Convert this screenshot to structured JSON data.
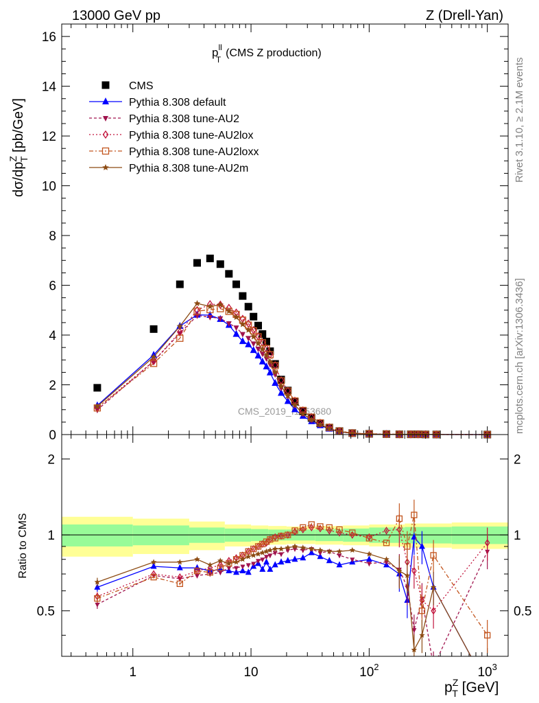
{
  "header": {
    "energy_label": "13000 GeV pp",
    "process_label": "Z (Drell-Yan)"
  },
  "side_text": {
    "rivet": "Rivet 3.1.10, ≥ 2.1M events",
    "mcplots": "mcplots.cern.ch [arXiv:1306.3436]"
  },
  "chart_data": [
    {
      "type": "scatter",
      "panel": "main",
      "title": "p_T^ll (CMS Z production)",
      "watermark": "CMS_2019_I1753680",
      "ylabel": "dσ/dp_T^Z [pb/GeV]",
      "xscale": "log",
      "xlim": [
        0.25,
        1500
      ],
      "ylim": [
        0,
        16.5
      ],
      "yticks": [
        0,
        2,
        4,
        6,
        8,
        10,
        12,
        14,
        16
      ],
      "legend_position": "top-left",
      "x": [
        0.5,
        1.5,
        2.5,
        3.5,
        4.5,
        5.5,
        6.5,
        7.5,
        8.5,
        9.5,
        10.5,
        11.5,
        12.5,
        13.5,
        14.5,
        16,
        18,
        20.5,
        23.5,
        27.5,
        32.5,
        38.5,
        46,
        56,
        72,
        100,
        140,
        180,
        225,
        260,
        300,
        370,
        1000
      ],
      "series": [
        {
          "name": "CMS",
          "color": "#000000",
          "marker": "square",
          "values": [
            1.88,
            4.24,
            6.04,
            6.9,
            7.08,
            6.85,
            6.46,
            6.04,
            5.57,
            5.14,
            4.74,
            4.38,
            4.04,
            3.74,
            3.35,
            2.84,
            2.21,
            1.77,
            1.32,
            0.94,
            0.67,
            0.45,
            0.28,
            0.14,
            0.06,
            0.03,
            0.02,
            0.01,
            0.01,
            0.01,
            0.005,
            0.004,
            0.001
          ]
        },
        {
          "name": "Pythia 8.308 default",
          "color": "#0000ff",
          "marker": "triangle-up",
          "dash": "",
          "values": [
            1.17,
            3.2,
            4.36,
            4.81,
            4.8,
            4.64,
            4.4,
            4.04,
            3.75,
            3.62,
            3.39,
            3.17,
            2.93,
            2.73,
            2.49,
            2.07,
            1.67,
            1.34,
            1.01,
            0.75,
            0.53,
            0.37,
            0.23,
            0.11,
            0.05,
            0.02,
            0.01,
            0.01,
            0.01,
            0.01,
            0.005,
            0.004,
            0.001
          ]
        },
        {
          "name": "Pythia 8.308 tune-AU2",
          "color": "#a0134d",
          "marker": "triangle-down",
          "dash": "4,3",
          "values": [
            0.99,
            2.95,
            4.07,
            4.78,
            4.72,
            4.67,
            4.47,
            4.3,
            4.04,
            3.88,
            3.66,
            3.45,
            3.25,
            3.06,
            2.82,
            2.42,
            1.87,
            1.54,
            1.18,
            0.83,
            0.59,
            0.39,
            0.25,
            0.12,
            0.05,
            0.02,
            0.01,
            0.01,
            0.01,
            0.01,
            0.005,
            0.004,
            0.001
          ]
        },
        {
          "name": "Pythia 8.308 tune-AU2lox",
          "color": "#c2143c",
          "marker": "diamond-open",
          "dash": "2,3",
          "values": [
            1.07,
            2.95,
            4.12,
            5.0,
            5.24,
            5.22,
            5.09,
            4.9,
            4.65,
            4.46,
            4.2,
            3.95,
            3.7,
            3.46,
            3.22,
            2.79,
            2.18,
            1.76,
            1.36,
            0.97,
            0.7,
            0.47,
            0.29,
            0.14,
            0.06,
            0.03,
            0.02,
            0.01,
            0.01,
            0.01,
            0.005,
            0.004,
            0.001
          ]
        },
        {
          "name": "Pythia 8.308 tune-AU2loxx",
          "color": "#c2541d",
          "marker": "square-open",
          "dash": "6,3,2,3",
          "values": [
            1.07,
            2.86,
            3.87,
            4.96,
            5.02,
            5.06,
            4.95,
            4.83,
            4.6,
            4.4,
            4.17,
            3.93,
            3.69,
            3.46,
            3.21,
            2.77,
            2.16,
            1.75,
            1.35,
            0.97,
            0.7,
            0.47,
            0.29,
            0.14,
            0.06,
            0.03,
            0.02,
            0.01,
            0.01,
            0.01,
            0.005,
            0.004,
            0.001
          ]
        },
        {
          "name": "Pythia 8.308 tune-AU2m",
          "color": "#8c4b13",
          "marker": "star",
          "dash": "",
          "values": [
            1.13,
            3.12,
            4.35,
            5.27,
            5.15,
            5.22,
            4.96,
            4.72,
            4.43,
            4.2,
            3.93,
            3.66,
            3.42,
            3.18,
            2.93,
            2.51,
            1.94,
            1.56,
            1.19,
            0.84,
            0.59,
            0.4,
            0.24,
            0.12,
            0.05,
            0.02,
            0.01,
            0.01,
            0.01,
            0.01,
            0.005,
            0.004,
            0.001
          ]
        }
      ]
    },
    {
      "type": "line",
      "panel": "ratio",
      "ylabel": "Ratio to CMS",
      "xlabel": "p_T^Z [GeV]",
      "xscale": "log",
      "yscale": "log",
      "xlim": [
        0.25,
        1500
      ],
      "ylim": [
        0.33,
        2.5
      ],
      "yticks": [
        0.5,
        1,
        2
      ],
      "xticks": [
        1,
        10,
        100,
        1000
      ],
      "xtick_labels": [
        "1",
        "10",
        "10^2",
        "10^3"
      ],
      "x": [
        0.5,
        1.5,
        2.5,
        3.5,
        4.5,
        5.5,
        6.5,
        7.5,
        8.5,
        9.5,
        10.5,
        11.5,
        12.5,
        13.5,
        14.5,
        16,
        18,
        20.5,
        23.5,
        27.5,
        32.5,
        38.5,
        46,
        56,
        72,
        100,
        140,
        180,
        210,
        240,
        280,
        350,
        1000
      ],
      "band_edges": [
        0.25,
        1,
        3,
        6,
        10,
        14,
        20,
        35,
        60,
        100,
        200,
        500,
        1500
      ],
      "band_inner": [
        0.1,
        0.09,
        0.07,
        0.06,
        0.055,
        0.05,
        0.05,
        0.055,
        0.06,
        0.07,
        0.075,
        0.08
      ],
      "band_outer": [
        0.18,
        0.16,
        0.13,
        0.1,
        0.09,
        0.085,
        0.08,
        0.085,
        0.09,
        0.1,
        0.11,
        0.12
      ],
      "series": [
        {
          "name": "Pythia 8.308 default",
          "color": "#0000ff",
          "marker": "triangle-up",
          "dash": "",
          "values": [
            0.62,
            0.75,
            0.74,
            0.74,
            0.72,
            0.73,
            0.72,
            0.71,
            0.72,
            0.71,
            0.75,
            0.77,
            0.73,
            0.78,
            0.73,
            0.76,
            0.78,
            0.79,
            0.8,
            0.81,
            0.85,
            0.82,
            0.79,
            0.76,
            0.78,
            0.8,
            0.76,
            0.7,
            0.55,
            0.98,
            0.9,
            0.62,
            0.25
          ]
        },
        {
          "name": "Pythia 8.308 tune-AU2",
          "color": "#a0134d",
          "marker": "triangle-down",
          "dash": "4,3",
          "values": [
            0.53,
            0.69,
            0.67,
            0.69,
            0.7,
            0.71,
            0.74,
            0.74,
            0.75,
            0.76,
            0.77,
            0.79,
            0.8,
            0.82,
            0.83,
            0.85,
            0.84,
            0.87,
            0.88,
            0.87,
            0.88,
            0.85,
            0.86,
            0.83,
            0.8,
            0.77,
            0.78,
            0.73,
            0.62,
            0.42,
            0.56,
            0.3,
            0.86
          ]
        },
        {
          "name": "Pythia 8.308 tune-AU2lox",
          "color": "#c2143c",
          "marker": "diamond-open",
          "dash": "2,3",
          "values": [
            0.57,
            0.7,
            0.68,
            0.72,
            0.74,
            0.76,
            0.79,
            0.81,
            0.83,
            0.86,
            0.88,
            0.9,
            0.92,
            0.93,
            0.96,
            0.98,
            0.99,
            1.0,
            1.03,
            1.05,
            1.07,
            1.06,
            1.04,
            1.02,
            1.0,
            0.98,
            1.04,
            1.05,
            0.78,
            0.72,
            0.55,
            0.5,
            0.93
          ]
        },
        {
          "name": "Pythia 8.308 tune-AU2loxx",
          "color": "#c2541d",
          "marker": "square-open",
          "dash": "6,3,2,3",
          "values": [
            0.56,
            0.68,
            0.64,
            0.72,
            0.71,
            0.74,
            0.77,
            0.8,
            0.83,
            0.86,
            0.88,
            0.9,
            0.92,
            0.94,
            0.96,
            0.97,
            0.99,
            1.0,
            1.04,
            1.07,
            1.1,
            1.08,
            1.07,
            1.05,
            1.02,
            0.97,
            0.93,
            1.16,
            0.9,
            1.2,
            0.5,
            0.83,
            0.4
          ]
        },
        {
          "name": "Pythia 8.308 tune-AU2m",
          "color": "#8c4b13",
          "marker": "star",
          "dash": "",
          "values": [
            0.65,
            0.78,
            0.78,
            0.8,
            0.76,
            0.79,
            0.77,
            0.78,
            0.8,
            0.82,
            0.83,
            0.84,
            0.85,
            0.86,
            0.87,
            0.88,
            0.88,
            0.89,
            0.9,
            0.89,
            0.88,
            0.87,
            0.86,
            0.86,
            0.87,
            0.84,
            0.8,
            0.72,
            0.69,
            0.35,
            0.4,
            0.62,
            0.25
          ]
        }
      ]
    }
  ]
}
